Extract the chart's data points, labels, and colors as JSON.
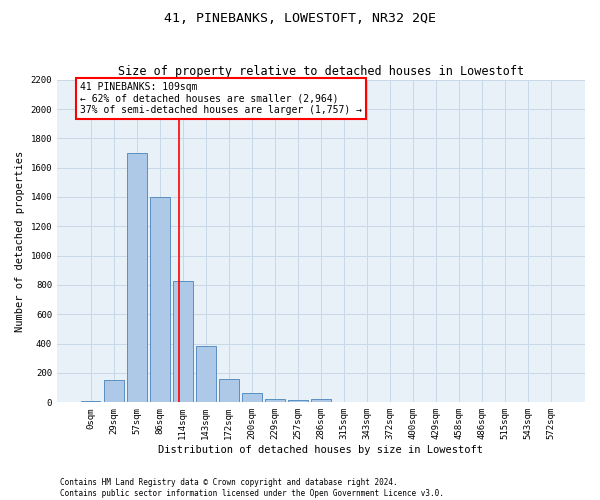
{
  "title": "41, PINEBANKS, LOWESTOFT, NR32 2QE",
  "subtitle": "Size of property relative to detached houses in Lowestoft",
  "xlabel": "Distribution of detached houses by size in Lowestoft",
  "ylabel": "Number of detached properties",
  "bar_categories": [
    "0sqm",
    "29sqm",
    "57sqm",
    "86sqm",
    "114sqm",
    "143sqm",
    "172sqm",
    "200sqm",
    "229sqm",
    "257sqm",
    "286sqm",
    "315sqm",
    "343sqm",
    "372sqm",
    "400sqm",
    "429sqm",
    "458sqm",
    "486sqm",
    "515sqm",
    "543sqm",
    "572sqm"
  ],
  "bar_values": [
    10,
    155,
    1700,
    1400,
    825,
    385,
    160,
    65,
    22,
    14,
    25,
    0,
    0,
    0,
    0,
    0,
    0,
    0,
    0,
    0,
    0
  ],
  "bar_color": "#aec8e8",
  "bar_edge_color": "#5a8fc0",
  "vline_x": 3.85,
  "vline_color": "red",
  "annotation_text": "41 PINEBANKS: 109sqm\n← 62% of detached houses are smaller (2,964)\n37% of semi-detached houses are larger (1,757) →",
  "annotation_box_color": "#ffffff",
  "annotation_box_edge_color": "red",
  "ylim": [
    0,
    2200
  ],
  "yticks": [
    0,
    200,
    400,
    600,
    800,
    1000,
    1200,
    1400,
    1600,
    1800,
    2000,
    2200
  ],
  "grid_color": "#c8d8e8",
  "bg_color": "#e8f0f8",
  "footer_line1": "Contains HM Land Registry data © Crown copyright and database right 2024.",
  "footer_line2": "Contains public sector information licensed under the Open Government Licence v3.0.",
  "title_fontsize": 9.5,
  "subtitle_fontsize": 8.5,
  "axis_label_fontsize": 7.5,
  "tick_fontsize": 6.5,
  "annotation_fontsize": 7,
  "footer_fontsize": 5.5
}
